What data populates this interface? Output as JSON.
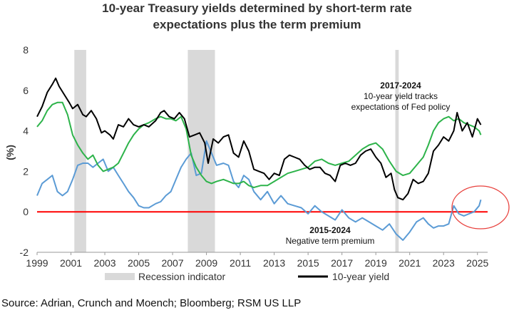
{
  "chart_data": {
    "type": "line",
    "title_line1": "10-year Treasury yields determined by short-term rate",
    "title_line2": "expectations plus the term premium",
    "ylabel": "(%)",
    "ylim": [
      -2,
      8
    ],
    "yticks": [
      "-2",
      "0",
      "2",
      "4",
      "6",
      "8"
    ],
    "xlim": [
      1999,
      2025.6
    ],
    "xticks": [
      "1999",
      "2001",
      "2003",
      "2005",
      "2007",
      "2009",
      "2011",
      "2013",
      "2015",
      "2017",
      "2019",
      "2021",
      "2023",
      "2025"
    ],
    "recessions": [
      [
        2001.2,
        2001.9
      ],
      [
        2007.9,
        2009.5
      ],
      [
        2020.15,
        2020.35
      ]
    ],
    "legend": {
      "recession": "Recession indicator",
      "yield": "10-year yield"
    },
    "colors": {
      "yield": "#000000",
      "expectations": "#2db34a",
      "term_premium": "#5b9bd5",
      "recession": "#d9d9d9",
      "zero_line": "#ff0000",
      "circle": "#e8413d"
    },
    "annotations": [
      {
        "title": "2017-2024",
        "lines": [
          "10-year yield tracks",
          "expectations of Fed policy"
        ]
      },
      {
        "title": "2015-2024",
        "lines": [
          "Negative term premium"
        ]
      }
    ],
    "series": [
      {
        "key": "yield",
        "x": [
          1999.0,
          1999.3,
          1999.6,
          1999.9,
          2000.1,
          2000.3,
          2000.6,
          2000.9,
          2001.1,
          2001.4,
          2001.7,
          2001.9,
          2002.2,
          2002.5,
          2002.8,
          2003.0,
          2003.3,
          2003.5,
          2003.8,
          2004.1,
          2004.4,
          2004.7,
          2005.0,
          2005.3,
          2005.6,
          2006.0,
          2006.3,
          2006.5,
          2006.8,
          2007.1,
          2007.4,
          2007.7,
          2008.0,
          2008.3,
          2008.6,
          2008.9,
          2009.1,
          2009.4,
          2009.7,
          2010.0,
          2010.3,
          2010.6,
          2010.9,
          2011.2,
          2011.5,
          2011.8,
          2012.1,
          2012.4,
          2012.7,
          2013.0,
          2013.3,
          2013.6,
          2013.9,
          2014.2,
          2014.5,
          2014.8,
          2015.1,
          2015.4,
          2015.7,
          2016.0,
          2016.3,
          2016.6,
          2016.9,
          2017.2,
          2017.5,
          2017.8,
          2018.1,
          2018.4,
          2018.7,
          2019.0,
          2019.3,
          2019.6,
          2019.9,
          2020.1,
          2020.3,
          2020.6,
          2020.9,
          2021.2,
          2021.5,
          2021.8,
          2022.1,
          2022.4,
          2022.7,
          2023.0,
          2023.3,
          2023.6,
          2023.8,
          2024.1,
          2024.4,
          2024.7,
          2025.0,
          2025.2
        ],
        "y": [
          4.7,
          5.2,
          5.9,
          6.3,
          6.6,
          6.2,
          5.8,
          5.4,
          5.1,
          5.3,
          4.8,
          4.7,
          5.0,
          4.6,
          3.9,
          4.0,
          3.8,
          3.6,
          4.3,
          4.2,
          4.6,
          4.3,
          4.2,
          4.3,
          4.2,
          4.5,
          4.9,
          5.0,
          4.7,
          4.6,
          4.9,
          4.6,
          3.7,
          3.8,
          3.9,
          3.4,
          2.4,
          3.6,
          3.4,
          3.7,
          3.8,
          2.9,
          2.7,
          3.5,
          3.0,
          2.1,
          2.0,
          1.9,
          1.6,
          1.9,
          1.8,
          2.6,
          2.8,
          2.7,
          2.6,
          2.3,
          2.1,
          2.2,
          2.2,
          1.9,
          1.8,
          1.5,
          2.3,
          2.4,
          2.3,
          2.4,
          2.8,
          3.0,
          3.1,
          2.7,
          2.4,
          1.7,
          1.9,
          1.1,
          0.7,
          0.6,
          0.9,
          1.6,
          1.4,
          1.5,
          1.9,
          3.0,
          3.3,
          3.7,
          3.5,
          4.0,
          4.9,
          4.0,
          4.4,
          3.7,
          4.6,
          4.3
        ]
      },
      {
        "key": "expectations",
        "x": [
          1999.0,
          1999.3,
          1999.6,
          1999.9,
          2000.2,
          2000.5,
          2000.8,
          2001.1,
          2001.4,
          2001.7,
          2002.0,
          2002.3,
          2002.6,
          2002.9,
          2003.2,
          2003.5,
          2003.8,
          2004.1,
          2004.4,
          2004.7,
          2005.0,
          2005.3,
          2005.6,
          2006.0,
          2006.3,
          2006.6,
          2006.9,
          2007.2,
          2007.5,
          2007.8,
          2008.1,
          2008.4,
          2008.7,
          2009.0,
          2009.3,
          2009.6,
          2010.0,
          2010.3,
          2010.6,
          2010.9,
          2011.2,
          2011.5,
          2011.8,
          2012.2,
          2012.6,
          2013.0,
          2013.4,
          2013.8,
          2014.2,
          2014.6,
          2015.0,
          2015.4,
          2015.8,
          2016.2,
          2016.6,
          2017.0,
          2017.4,
          2017.8,
          2018.2,
          2018.6,
          2019.0,
          2019.4,
          2019.8,
          2020.2,
          2020.6,
          2021.0,
          2021.4,
          2021.8,
          2022.1,
          2022.4,
          2022.7,
          2023.0,
          2023.3,
          2023.6,
          2023.9,
          2024.2,
          2024.5,
          2024.8,
          2025.1,
          2025.2
        ],
        "y": [
          4.2,
          4.5,
          5.0,
          5.3,
          5.4,
          5.4,
          4.8,
          3.8,
          3.3,
          2.9,
          2.6,
          2.8,
          2.3,
          2.0,
          2.1,
          2.2,
          2.4,
          2.9,
          3.4,
          3.8,
          4.1,
          4.3,
          4.4,
          4.6,
          4.7,
          4.6,
          4.6,
          4.5,
          4.7,
          4.1,
          2.8,
          2.2,
          1.8,
          1.5,
          1.4,
          1.5,
          1.6,
          1.5,
          1.4,
          1.4,
          1.5,
          1.3,
          1.2,
          1.3,
          1.3,
          1.5,
          1.7,
          1.9,
          2.0,
          2.1,
          2.2,
          2.5,
          2.6,
          2.4,
          2.3,
          2.4,
          2.5,
          2.8,
          3.1,
          3.3,
          3.4,
          3.1,
          2.5,
          2.0,
          1.8,
          1.9,
          2.3,
          2.7,
          3.3,
          4.0,
          4.4,
          4.6,
          4.7,
          4.5,
          4.6,
          4.4,
          4.3,
          4.2,
          4.0,
          3.8
        ]
      },
      {
        "key": "term_premium",
        "x": [
          1999.0,
          1999.3,
          1999.6,
          1999.9,
          2000.2,
          2000.5,
          2000.8,
          2001.1,
          2001.4,
          2001.7,
          2002.0,
          2002.3,
          2002.6,
          2002.9,
          2003.2,
          2003.5,
          2003.8,
          2004.1,
          2004.4,
          2004.7,
          2005.0,
          2005.3,
          2005.6,
          2006.0,
          2006.3,
          2006.6,
          2006.9,
          2007.2,
          2007.5,
          2007.8,
          2008.1,
          2008.4,
          2008.7,
          2009.0,
          2009.3,
          2009.6,
          2010.0,
          2010.3,
          2010.6,
          2010.9,
          2011.2,
          2011.5,
          2011.8,
          2012.2,
          2012.6,
          2013.0,
          2013.4,
          2013.8,
          2014.2,
          2014.6,
          2015.0,
          2015.4,
          2015.8,
          2016.2,
          2016.6,
          2017.0,
          2017.4,
          2017.8,
          2018.2,
          2018.6,
          2019.0,
          2019.4,
          2019.8,
          2020.2,
          2020.6,
          2021.0,
          2021.4,
          2021.8,
          2022.1,
          2022.4,
          2022.7,
          2023.0,
          2023.3,
          2023.6,
          2023.9,
          2024.2,
          2024.5,
          2024.8,
          2025.1,
          2025.2
        ],
        "y": [
          0.8,
          1.4,
          1.6,
          1.8,
          1.0,
          0.8,
          1.0,
          1.6,
          2.3,
          2.4,
          2.4,
          2.2,
          2.4,
          2.6,
          2.0,
          2.2,
          1.8,
          1.4,
          1.0,
          0.7,
          0.3,
          0.2,
          0.2,
          0.4,
          0.5,
          0.8,
          1.0,
          1.6,
          2.2,
          2.6,
          2.9,
          1.8,
          1.9,
          3.5,
          2.9,
          2.3,
          2.4,
          2.3,
          1.5,
          1.2,
          1.8,
          1.6,
          1.0,
          0.6,
          1.0,
          0.4,
          0.8,
          0.4,
          0.3,
          0.2,
          -0.1,
          0.3,
          0.0,
          -0.2,
          -0.4,
          0.1,
          -0.3,
          -0.5,
          -0.3,
          -0.5,
          -0.7,
          -0.9,
          -0.6,
          -1.1,
          -1.4,
          -1.0,
          -0.5,
          -0.3,
          -0.6,
          -0.8,
          -0.7,
          -0.7,
          -0.6,
          0.3,
          -0.1,
          -0.2,
          -0.1,
          0.0,
          0.3,
          0.6
        ]
      }
    ]
  },
  "source": "Source: Adrian, Crunch and Moench; Bloomberg; RSM US LLP"
}
